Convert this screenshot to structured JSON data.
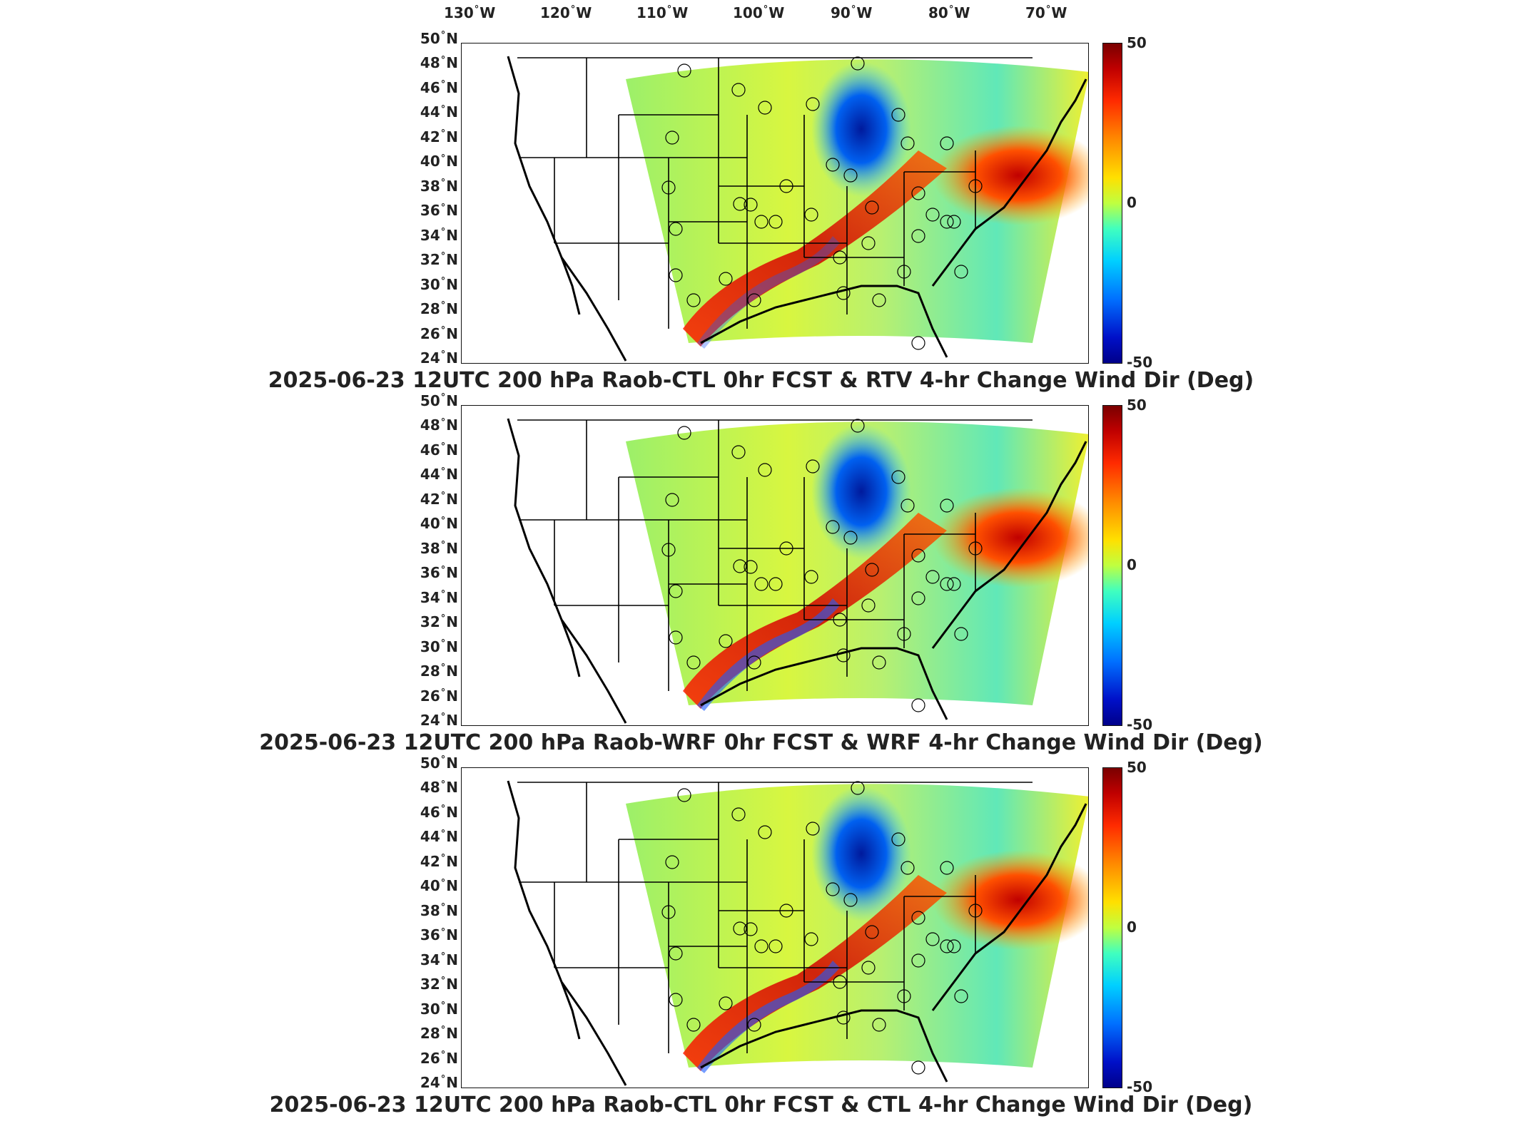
{
  "longitude_labels": [
    {
      "value": "130",
      "unit": "W"
    },
    {
      "value": "120",
      "unit": "W"
    },
    {
      "value": "110",
      "unit": "W"
    },
    {
      "value": "100",
      "unit": "W"
    },
    {
      "value": "90",
      "unit": "W"
    },
    {
      "value": "80",
      "unit": "W"
    },
    {
      "value": "70",
      "unit": "W"
    }
  ],
  "degree_symbol": "°",
  "latitude_labels": [
    {
      "value": "50",
      "unit": "N"
    },
    {
      "value": "48",
      "unit": "N"
    },
    {
      "value": "46",
      "unit": "N"
    },
    {
      "value": "44",
      "unit": "N"
    },
    {
      "value": "42",
      "unit": "N"
    },
    {
      "value": "40",
      "unit": "N"
    },
    {
      "value": "38",
      "unit": "N"
    },
    {
      "value": "36",
      "unit": "N"
    },
    {
      "value": "34",
      "unit": "N"
    },
    {
      "value": "32",
      "unit": "N"
    },
    {
      "value": "30",
      "unit": "N"
    },
    {
      "value": "28",
      "unit": "N"
    },
    {
      "value": "26",
      "unit": "N"
    },
    {
      "value": "24",
      "unit": "N"
    }
  ],
  "colorbar": {
    "max_label": "50",
    "mid_label": "0",
    "min_label": "-50",
    "colormap": [
      "#7a0000",
      "#ff2b00",
      "#ffe000",
      "#40ffbf",
      "#0070ff",
      "#00008a"
    ]
  },
  "panels": [
    {
      "caption": "2025-06-23 12UTC 200 hPa Raob-CTL 0hr FCST & RTV 4-hr Change Wind Dir (Deg)"
    },
    {
      "caption": "2025-06-23 12UTC 200 hPa Raob-WRF 0hr FCST & WRF 4-hr Change Wind Dir (Deg)"
    },
    {
      "caption": "2025-06-23 12UTC 200 hPa Raob-CTL 0hr FCST & CTL 4-hr Change Wind Dir (Deg)"
    }
  ],
  "raob_station_count": 37
}
